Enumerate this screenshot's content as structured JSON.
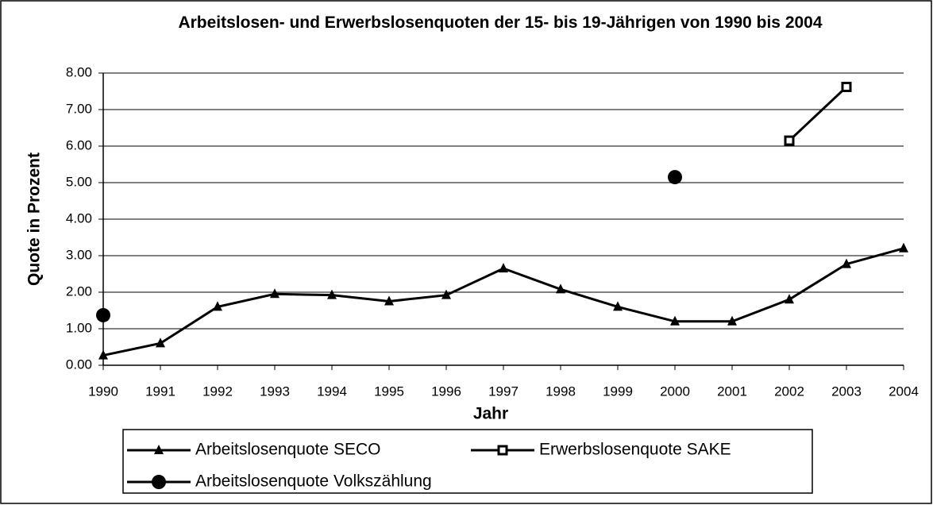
{
  "chart_data": {
    "type": "line",
    "title": "Arbeitslosen- und Erwerbslosenquoten der 15- bis 19-Jährigen von 1990 bis 2004",
    "xlabel": "Jahr",
    "ylabel": "Quote in Prozent",
    "x": [
      1990,
      1991,
      1992,
      1993,
      1994,
      1995,
      1996,
      1997,
      1998,
      1999,
      2000,
      2001,
      2002,
      2003,
      2004
    ],
    "xlim": [
      1990,
      2004
    ],
    "xticks": [
      1990,
      1991,
      1992,
      1993,
      1994,
      1995,
      1996,
      1997,
      1998,
      1999,
      2000,
      2001,
      2002,
      2003,
      2004
    ],
    "ylim": [
      0,
      8
    ],
    "yticks": [
      {
        "value": 0,
        "label": "0.00"
      },
      {
        "value": 1,
        "label": "1.00"
      },
      {
        "value": 2,
        "label": "2.00"
      },
      {
        "value": 3,
        "label": "3.00"
      },
      {
        "value": 4,
        "label": "4.00"
      },
      {
        "value": 5,
        "label": "5.00"
      },
      {
        "value": 6,
        "label": "6.00"
      },
      {
        "value": 7,
        "label": "7.00"
      },
      {
        "value": 8,
        "label": "8.00"
      }
    ],
    "grid": true,
    "legend": "bottom",
    "series": [
      {
        "name": "Arbeitslosenquote SECO",
        "color": "#000000",
        "marker": "triangle",
        "values": [
          0.27,
          0.6,
          1.6,
          1.95,
          1.92,
          1.75,
          1.92,
          2.65,
          2.08,
          1.6,
          1.2,
          1.2,
          1.8,
          2.77,
          3.2
        ]
      },
      {
        "name": "Erwerbslosenquote SAKE",
        "color": "#000000",
        "marker": "square",
        "values": [
          null,
          null,
          null,
          null,
          null,
          null,
          null,
          null,
          null,
          null,
          null,
          null,
          6.15,
          7.62,
          null
        ]
      },
      {
        "name": "Arbeitslosenquote Volkszählung",
        "color": "#000000",
        "marker": "circle",
        "values": [
          1.37,
          null,
          null,
          null,
          null,
          null,
          null,
          null,
          null,
          null,
          5.15,
          null,
          null,
          null,
          null
        ]
      }
    ]
  }
}
